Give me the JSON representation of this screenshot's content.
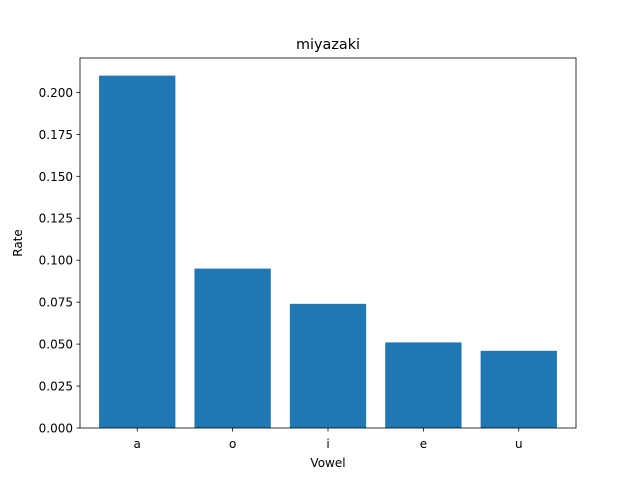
{
  "chart_data": {
    "type": "bar",
    "title": "miyazaki",
    "xlabel": "Vowel",
    "ylabel": "Rate",
    "categories": [
      "a",
      "o",
      "i",
      "e",
      "u"
    ],
    "values": [
      0.21,
      0.095,
      0.074,
      0.051,
      0.046
    ],
    "ylim": [
      0,
      0.2205
    ],
    "yticks": [
      "0.000",
      "0.025",
      "0.050",
      "0.075",
      "0.100",
      "0.125",
      "0.150",
      "0.175",
      "0.200"
    ],
    "bar_color": "#1f77b4",
    "grid": false,
    "legend": "none"
  }
}
